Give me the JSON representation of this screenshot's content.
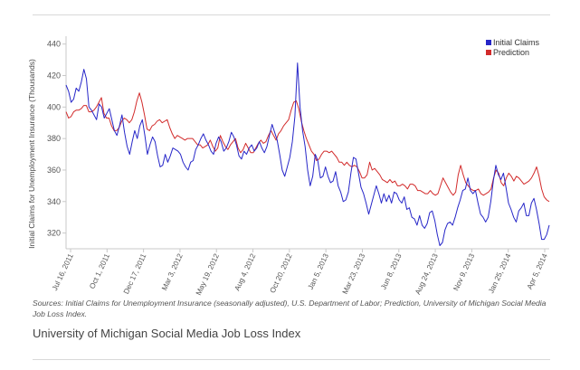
{
  "chart_data": {
    "type": "line",
    "title": "",
    "ylabel": "Initial Claims for Unemployment Insurance (Thousands)",
    "xlabel": "",
    "ylim": [
      310,
      445
    ],
    "yticks": [
      320,
      340,
      360,
      380,
      400,
      420,
      440
    ],
    "xticks": [
      "Jul 16, 2011",
      "Oct 1, 2011",
      "Dec 17, 2011",
      "Mar 3, 2012",
      "May 19, 2012",
      "Aug 4, 2012",
      "Oct 20, 2012",
      "Jan 5, 2013",
      "Mar 23, 2013",
      "Jun 8, 2013",
      "Aug 24, 2013",
      "Nov 9, 2013",
      "Jan 25, 2014",
      "Apr 5, 2014"
    ],
    "legend": "top-right",
    "grid": false,
    "series": [
      {
        "name": "Initial Claims",
        "color": "#2626c8",
        "values": [
          414,
          410,
          403,
          405,
          412,
          410,
          416,
          424,
          418,
          400,
          398,
          395,
          392,
          402,
          400,
          393,
          396,
          399,
          392,
          385,
          382,
          388,
          395,
          384,
          375,
          370,
          378,
          385,
          380,
          388,
          392,
          382,
          370,
          376,
          381,
          378,
          369,
          362,
          363,
          370,
          365,
          369,
          374,
          373,
          372,
          370,
          365,
          362,
          360,
          365,
          366,
          373,
          376,
          380,
          383,
          379,
          376,
          372,
          370,
          377,
          381,
          378,
          372,
          374,
          378,
          384,
          381,
          376,
          369,
          367,
          372,
          370,
          374,
          376,
          372,
          374,
          378,
          374,
          371,
          375,
          382,
          389,
          384,
          379,
          370,
          360,
          356,
          362,
          368,
          378,
          394,
          428,
          400,
          385,
          375,
          360,
          350,
          356,
          370,
          366,
          355,
          356,
          362,
          356,
          352,
          353,
          359,
          350,
          346,
          340,
          341,
          346,
          358,
          368,
          367,
          358,
          349,
          345,
          339,
          332,
          338,
          344,
          350,
          345,
          339,
          345,
          340,
          344,
          339,
          346,
          345,
          341,
          339,
          343,
          335,
          336,
          330,
          329,
          325,
          331,
          325,
          323,
          326,
          333,
          334,
          328,
          319,
          312,
          314,
          322,
          326,
          327,
          325,
          330,
          336,
          341,
          347,
          348,
          355,
          347,
          345,
          347,
          339,
          332,
          330,
          327,
          330,
          340,
          353,
          363,
          357,
          354,
          358,
          349,
          339,
          335,
          330,
          327,
          334,
          336,
          339,
          331,
          331,
          339,
          342,
          335,
          326,
          316,
          316,
          319,
          325
        ]
      },
      {
        "name": "Prediction",
        "color": "#d22b2b",
        "values": [
          397,
          393,
          394,
          397,
          398,
          398,
          399,
          401,
          401,
          397,
          397,
          398,
          400,
          403,
          406,
          396,
          393,
          393,
          388,
          385,
          385,
          387,
          391,
          393,
          392,
          390,
          392,
          397,
          404,
          409,
          403,
          395,
          386,
          385,
          388,
          389,
          391,
          392,
          390,
          391,
          392,
          387,
          383,
          380,
          382,
          381,
          380,
          379,
          380,
          380,
          380,
          378,
          376,
          376,
          374,
          375,
          376,
          379,
          375,
          372,
          374,
          382,
          378,
          375,
          373,
          376,
          378,
          380,
          374,
          371,
          373,
          377,
          374,
          371,
          371,
          374,
          377,
          379,
          377,
          378,
          382,
          385,
          382,
          379,
          383,
          385,
          388,
          390,
          392,
          398,
          403,
          404,
          399,
          391,
          385,
          380,
          376,
          372,
          370,
          366,
          367,
          370,
          372,
          372,
          371,
          372,
          370,
          368,
          365,
          365,
          363,
          365,
          363,
          362,
          363,
          362,
          359,
          355,
          355,
          357,
          365,
          360,
          361,
          359,
          357,
          354,
          353,
          352,
          354,
          352,
          353,
          350,
          350,
          351,
          350,
          348,
          351,
          351,
          350,
          347,
          347,
          346,
          345,
          345,
          347,
          345,
          344,
          345,
          350,
          355,
          352,
          349,
          346,
          344,
          346,
          357,
          363,
          357,
          352,
          350,
          348,
          347,
          347,
          348,
          345,
          344,
          345,
          346,
          348,
          355,
          360,
          358,
          352,
          350,
          355,
          358,
          356,
          353,
          356,
          355,
          353,
          351,
          352,
          353,
          355,
          358,
          362,
          356,
          348,
          343,
          341,
          340
        ]
      }
    ]
  },
  "source_note": "Sources: Initial Claims for Unemployment Insurance (seasonally adjusted), U.S. Department of Labor; Prediction, University of Michigan Social Media Job Loss Index.",
  "caption": "University of Michigan Social Media Job Loss Index"
}
